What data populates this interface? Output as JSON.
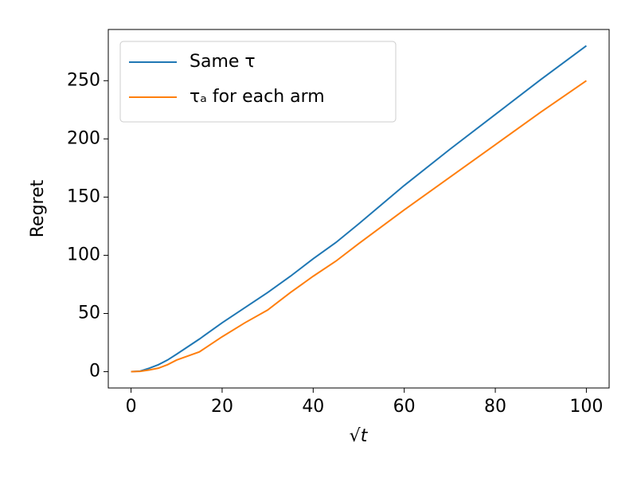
{
  "chart_data": {
    "type": "line",
    "x_label": "√t",
    "y_label": "Regret",
    "x": [
      0,
      2,
      4,
      6,
      8,
      10,
      15,
      20,
      25,
      30,
      35,
      40,
      45,
      50,
      60,
      70,
      80,
      90,
      100
    ],
    "series": [
      {
        "name": "Same  τ",
        "color": "#1f77b4",
        "values": [
          0,
          0.5,
          3,
          6,
          10,
          15,
          28,
          42,
          55,
          68,
          82,
          97,
          111,
          127,
          160,
          191,
          221,
          251,
          280
        ]
      },
      {
        "name": "τₐ for each arm",
        "color": "#ff7f0e",
        "values": [
          0,
          0.3,
          1.5,
          3,
          6,
          10,
          17,
          30,
          42,
          53,
          68,
          82,
          95,
          110,
          139,
          167,
          195,
          223,
          250
        ]
      }
    ],
    "xlim": [
      -5,
      105
    ],
    "ylim": [
      -14,
      294
    ],
    "xticks": [
      0,
      20,
      40,
      60,
      80,
      100
    ],
    "yticks": [
      0,
      50,
      100,
      150,
      200,
      250
    ],
    "legend": "upper left",
    "grid": false
  }
}
